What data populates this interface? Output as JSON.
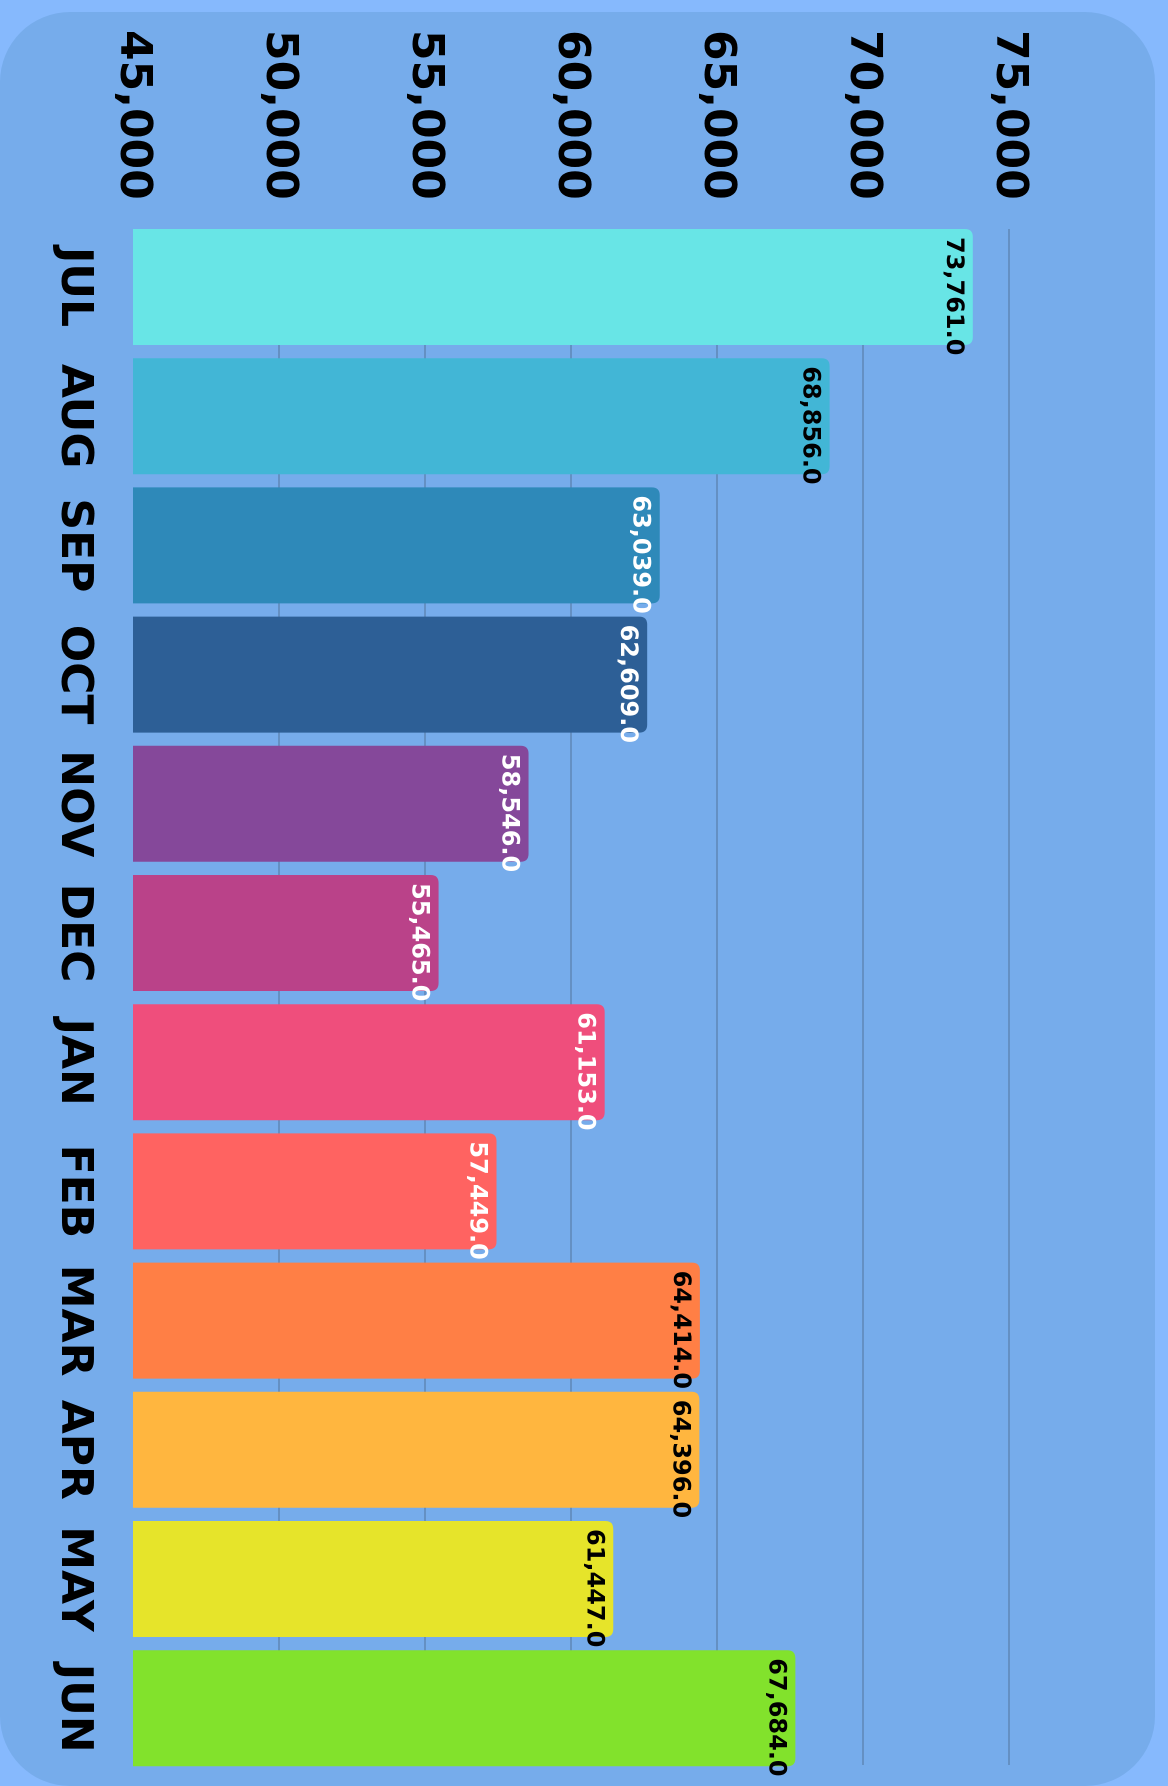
{
  "chart_data": {
    "type": "bar",
    "orientation": "horizontal",
    "title": "",
    "xlabel": "",
    "ylabel": "",
    "categories": [
      "JUL",
      "AUG",
      "SEP",
      "OCT",
      "NOV",
      "DEC",
      "JAN",
      "FEB",
      "MAR",
      "APR",
      "MAY",
      "JUN"
    ],
    "values": [
      73761.0,
      68856.0,
      63039.0,
      62609.0,
      58546.0,
      55465.0,
      61153.0,
      57449.0,
      64414.0,
      64396.0,
      61447.0,
      67684.0
    ],
    "value_labels": [
      "73,761.0",
      "68,856.0",
      "63,039.0",
      "62,609.0",
      "58,546.0",
      "55,465.0",
      "61,153.0",
      "57,449.0",
      "64,414.0",
      "64,396.0",
      "61,447.0",
      "67,684.0"
    ],
    "tick_values": [
      45000,
      50000,
      55000,
      60000,
      65000,
      70000,
      75000
    ],
    "tick_labels": [
      "45,000",
      "50,000",
      "55,000",
      "60,000",
      "65,000",
      "70,000",
      "75,000"
    ],
    "xlim": [
      45000,
      75000
    ],
    "grid": true,
    "legend": "none",
    "bar_colors": [
      "#68E5E6",
      "#42B6D6",
      "#2E89B9",
      "#2D5F96",
      "#85489A",
      "#BA4289",
      "#EF4E7C",
      "#FF6361",
      "#FF7F45",
      "#FFB63F",
      "#E6E42A",
      "#82E22C"
    ],
    "label_colors": [
      "#000000",
      "#000000",
      "#FFFFFF",
      "#FFFFFF",
      "#FFFFFF",
      "#FFFFFF",
      "#FFFFFF",
      "#FFFFFF",
      "#000000",
      "#000000",
      "#000000",
      "#000000"
    ],
    "colors": {
      "background": "#86B9FD",
      "panel": "#76ACEB",
      "gridline": "#5E86B6"
    }
  }
}
